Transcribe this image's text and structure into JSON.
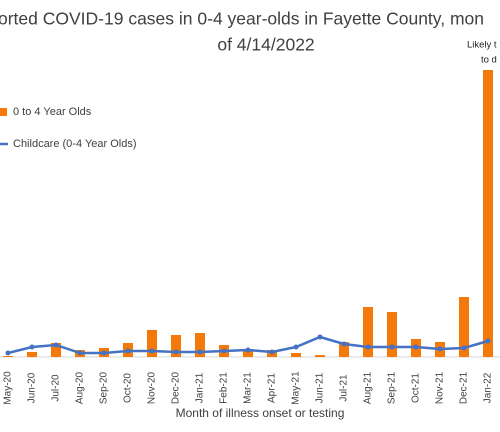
{
  "chart_data": {
    "type": "bar-line",
    "title": [
      "orted COVID-19 cases in 0-4 year-olds in Fayette County, mon",
      "of 4/14/2022"
    ],
    "annotation": [
      "Likely t",
      "to d"
    ],
    "x_label": "Month of illness onset or testing",
    "categories": [
      "May-20",
      "Jun-20",
      "Jul-20",
      "Aug-20",
      "Sep-20",
      "Oct-20",
      "Nov-20",
      "Dec-20",
      "Jan-21",
      "Feb-21",
      "Mar-21",
      "Apr-21",
      "May-21",
      "Jun-21",
      "Jul-21",
      "Aug-21",
      "Sep-21",
      "Oct-21",
      "Nov-21",
      "Dec-21",
      "Jan-22"
    ],
    "series": [
      {
        "name": "0 to 4 Year Olds",
        "color": "#f4790b",
        "kind": "bar",
        "values": [
          1,
          5,
          14,
          7,
          9,
          14,
          27,
          22,
          24,
          12,
          8,
          7,
          4,
          2,
          15,
          50,
          45,
          18,
          15,
          60,
          287
        ]
      },
      {
        "name": "Childcare (0-4 Year Olds)",
        "color": "#4472c4",
        "kind": "line",
        "values": [
          4,
          10,
          12,
          4,
          4,
          6,
          6,
          5,
          5,
          6,
          7,
          5,
          10,
          20,
          13,
          10,
          10,
          10,
          8,
          9,
          16
        ]
      }
    ],
    "ylim": [
      0,
      300
    ]
  }
}
